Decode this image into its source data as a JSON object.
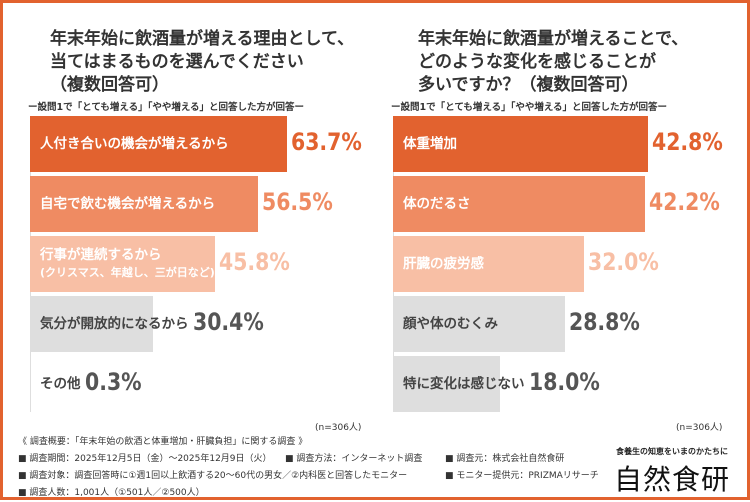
{
  "chart_data": [
    {
      "type": "bar",
      "orientation": "horizontal",
      "title": "年末年始に飲酒量が増える理由として、\n当てはまるものを選んでください\n（複数回答可）",
      "subtitle": "ー設問1で「とても増える」「やや増える」と回答した方が回答ー",
      "categories": [
        "人付き合いの機会が増えるから",
        "自宅で飲む機会が増えるから",
        "行事が連続するから",
        "気分が開放的になるから",
        "その他"
      ],
      "category_notes": [
        "",
        "",
        "(クリスマス、年越し、三が日など)",
        "",
        ""
      ],
      "values": [
        63.7,
        56.5,
        45.8,
        30.4,
        0.3
      ],
      "value_labels": [
        "63.7%",
        "56.5%",
        "45.8%",
        "30.4%",
        "0.3%"
      ],
      "colors": [
        "#e2622f",
        "#ef8b62",
        "#f8bfa5",
        "#dedede",
        "#dedede"
      ],
      "sample": "(n=306人)"
    },
    {
      "type": "bar",
      "orientation": "horizontal",
      "title": "年末年始に飲酒量が増えることで、\nどのような変化を感じることが\n多いですか？（複数回答可）",
      "subtitle": "ー設問1で「とても増える」「やや増える」と回答した方が回答ー",
      "categories": [
        "体重増加",
        "体のだるさ",
        "肝臓の疲労感",
        "顔や体のむくみ",
        "特に変化は感じない"
      ],
      "category_notes": [
        "",
        "",
        "",
        "",
        ""
      ],
      "values": [
        42.8,
        42.2,
        32.0,
        28.8,
        18.0
      ],
      "value_labels": [
        "42.8%",
        "42.2%",
        "32.0%",
        "28.8%",
        "18.0%"
      ],
      "colors": [
        "#e2622f",
        "#ef8b62",
        "#f8bfa5",
        "#dedede",
        "#dedede"
      ],
      "sample": "(n=306人)"
    }
  ],
  "footer": {
    "lines": [
      "《 調査概要：「年末年始の飲酒と体重増加・肝臓負担」に関する調査 》",
      "■ 調査期間：2025年12月5日（金）～2025年12月9日（火）",
      "■ 調査方法：インターネット調査",
      "■ 調査元：株式会社自然食研",
      "■ 調査対象：調査回答時に①週1回以上飲酒する20～60代の男女／②内科医と回答したモニター",
      "■ モニター提供元：PRIZMAリサーチ",
      "■ 調査人数：1,001人（①501人／②500人）"
    ],
    "logo_tagline": "食養生の知恵をいまのかたちに",
    "logo": "自然食研"
  }
}
